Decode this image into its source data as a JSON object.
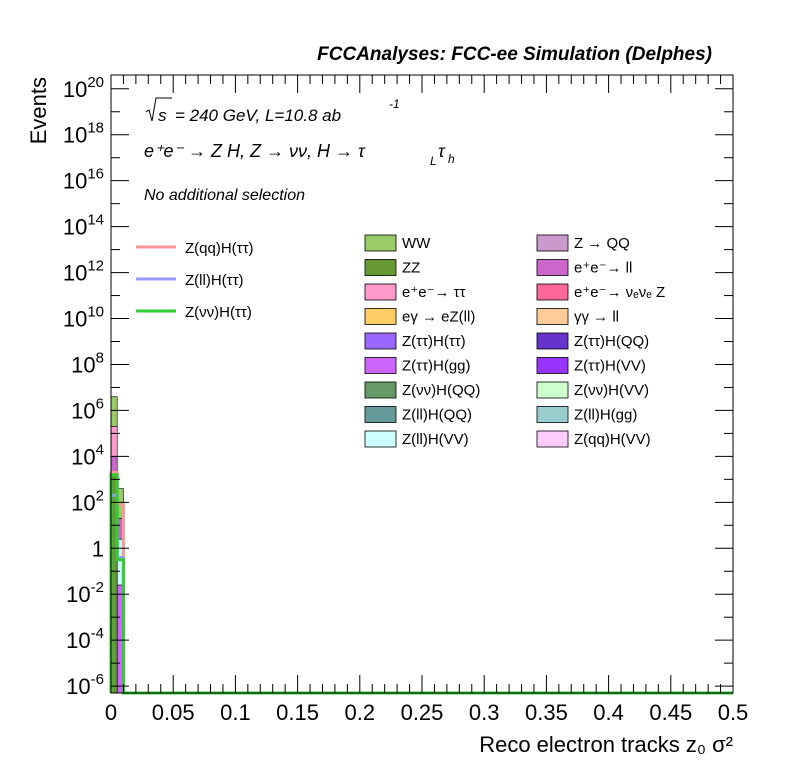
{
  "header": {
    "title": "FCCAnalyses: FCC-ee Simulation (Delphes)"
  },
  "annotations": {
    "energy_sqrt": "s",
    "energy_rest": "= 240 GeV, L=10.8 ab",
    "energy_exp": "-1",
    "process": "e⁺e⁻ → Z H, Z → νν, H → τ",
    "process_sub1": "L",
    "process_tau": "τ",
    "process_sub2": "h",
    "selection": "No additional selection"
  },
  "chart_data": {
    "type": "histogram",
    "title": "FCCAnalyses: FCC-ee Simulation (Delphes)",
    "xlabel": "Reco electron tracks z₀ σ²",
    "ylabel": "Events",
    "xlim": [
      0,
      0.5
    ],
    "ylim_log10": [
      -6.3,
      20.6
    ],
    "yscale": "log",
    "x_ticks": [
      "0",
      "0.05",
      "0.1",
      "0.15",
      "0.2",
      "0.25",
      "0.3",
      "0.35",
      "0.4",
      "0.45",
      "0.5"
    ],
    "y_ticks": [
      {
        "base": "10",
        "exp": "20",
        "log": 20
      },
      {
        "base": "10",
        "exp": "18",
        "log": 18
      },
      {
        "base": "10",
        "exp": "16",
        "log": 16
      },
      {
        "base": "10",
        "exp": "14",
        "log": 14
      },
      {
        "base": "10",
        "exp": "12",
        "log": 12
      },
      {
        "base": "10",
        "exp": "10",
        "log": 10
      },
      {
        "base": "10",
        "exp": "8",
        "log": 8
      },
      {
        "base": "10",
        "exp": "6",
        "log": 6
      },
      {
        "base": "10",
        "exp": "4",
        "log": 4
      },
      {
        "base": "10",
        "exp": "2",
        "log": 2
      },
      {
        "base": "1",
        "exp": "",
        "log": 0
      },
      {
        "base": "10",
        "exp": "-2",
        "log": -2
      },
      {
        "base": "10",
        "exp": "-4",
        "log": -4
      },
      {
        "base": "10",
        "exp": "-6",
        "log": -6
      }
    ],
    "bin_width": 0.005,
    "stack_bins": [
      {
        "x0": 0.0,
        "layers": [
          {
            "name": "ZZ",
            "log_top": 3.3
          },
          {
            "name": "e⁺e⁻→ ll",
            "log_top": 4.0
          },
          {
            "name": "e⁺e⁻→ ττ",
            "log_top": 5.3
          },
          {
            "name": "WW",
            "log_top": 6.6
          }
        ]
      },
      {
        "x0": 0.005,
        "layers": [
          {
            "name": "Z(ττ)H(gg)",
            "log_top": -1.6
          },
          {
            "name": "Z(ll)H(VV)",
            "log_top": 0.4
          },
          {
            "name": "e⁺e⁻→ ll",
            "log_top": 1.3
          },
          {
            "name": "WW",
            "log_top": 2.6
          }
        ]
      }
    ],
    "signal_lines": [
      {
        "name": "Z(qq)H(ττ)",
        "color": "#f89898",
        "bins": [
          {
            "x0": 0.0,
            "x1": 0.005,
            "log": 3.3
          },
          {
            "x0": 0.005,
            "x1": 0.01,
            "log": 1.9
          }
        ]
      },
      {
        "name": "Z(ll)H(ττ)",
        "color": "#9999ff",
        "bins": [
          {
            "x0": 0.0,
            "x1": 0.005,
            "log": 2.3
          },
          {
            "x0": 0.005,
            "x1": 0.01,
            "log": -0.4
          }
        ]
      },
      {
        "name": "Z(νν)H(ττ)",
        "color": "#33cc33",
        "bins": [
          {
            "x0": 0.0,
            "x1": 0.005,
            "log": 3.2
          },
          {
            "x0": 0.005,
            "x1": 0.01,
            "log": -0.5
          },
          {
            "x0": 0.01,
            "x1": 0.5,
            "log": -6.3
          }
        ]
      }
    ],
    "signal_legend": [
      {
        "name": "Z(qq)H(ττ)",
        "color": "#f89898"
      },
      {
        "name": "Z(ll)H(ττ)",
        "color": "#9999ff"
      },
      {
        "name": "Z(νν)H(ττ)",
        "color": "#33cc33"
      }
    ],
    "background_legend": [
      {
        "name": "WW",
        "color": "#99cc66"
      },
      {
        "name": "Z → QQ",
        "color": "#cc99cc"
      },
      {
        "name": "ZZ",
        "color": "#669933"
      },
      {
        "name": "e⁺e⁻→ ll",
        "color": "#cc66cc"
      },
      {
        "name": "e⁺e⁻→ ττ",
        "color": "#ff99cc"
      },
      {
        "name": "e⁺e⁻→ νₑνₑ Z",
        "color": "#ff6699"
      },
      {
        "name": "eγ → eZ(ll)",
        "color": "#ffcc66"
      },
      {
        "name": "γγ → ll",
        "color": "#ffcc99"
      },
      {
        "name": "Z(ττ)H(ττ)",
        "color": "#9966ff"
      },
      {
        "name": "Z(ττ)H(QQ)",
        "color": "#6633cc"
      },
      {
        "name": "Z(ττ)H(gg)",
        "color": "#cc66ff"
      },
      {
        "name": "Z(ττ)H(VV)",
        "color": "#9933ff"
      },
      {
        "name": "Z(νν)H(QQ)",
        "color": "#669966"
      },
      {
        "name": "Z(νν)H(VV)",
        "color": "#ccffcc"
      },
      {
        "name": "Z(ll)H(QQ)",
        "color": "#669999"
      },
      {
        "name": "Z(ll)H(gg)",
        "color": "#99cccc"
      },
      {
        "name": "Z(ll)H(VV)",
        "color": "#ccffff"
      },
      {
        "name": "Z(qq)H(VV)",
        "color": "#ffccff"
      }
    ]
  }
}
